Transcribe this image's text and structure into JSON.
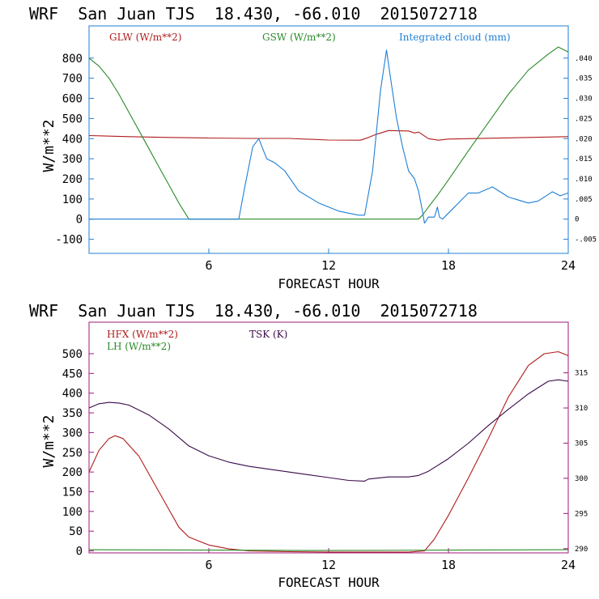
{
  "colors": {
    "glw": "#b01c1c",
    "gsw": "#2a8a2a",
    "cloud": "#1f7fd6",
    "hfx": "#b01c1c",
    "lh": "#2a8a2a",
    "tsk": "#3a0a4a",
    "frame_top": "#1f7fd6",
    "frame_bottom": "#a0187a",
    "text": "#000000"
  },
  "chart_data": [
    {
      "type": "line",
      "title": "WRF  San Juan TJS  18.430, -66.010  2015072718",
      "xlabel": "FORECAST HOUR",
      "ylabel": "W/m**2",
      "xlim": [
        0,
        24
      ],
      "ylim": [
        -170,
        960
      ],
      "y2lim": [
        -0.0085,
        0.048
      ],
      "x_ticks": [
        6,
        12,
        18,
        24
      ],
      "y_ticks": [
        -100,
        0,
        100,
        200,
        300,
        400,
        500,
        600,
        700,
        800
      ],
      "y2_ticks": [
        -0.005,
        0,
        0.005,
        0.01,
        0.015,
        0.02,
        0.025,
        0.03,
        0.035,
        0.04
      ],
      "y2_tick_labels": [
        "-.005",
        "0",
        ".005",
        ".010",
        ".015",
        ".020",
        ".025",
        ".030",
        ".035",
        ".040"
      ],
      "legend": [
        "GLW (W/m**2)",
        "GSW (W/m**2)",
        "Integrated cloud (mm)"
      ],
      "series": [
        {
          "name": "GLW (W/m**2)",
          "axis": "left",
          "color_key": "glw",
          "points": [
            [
              0,
              415
            ],
            [
              2,
              410
            ],
            [
              4,
              406
            ],
            [
              6,
              403
            ],
            [
              8,
              401
            ],
            [
              10,
              401
            ],
            [
              12,
              393
            ],
            [
              13.6,
              392
            ],
            [
              14,
              406
            ],
            [
              14.4,
              422
            ],
            [
              15,
              440
            ],
            [
              16,
              438
            ],
            [
              16.3,
              428
            ],
            [
              16.5,
              433
            ],
            [
              17,
              400
            ],
            [
              17.5,
              392
            ],
            [
              18,
              398
            ],
            [
              20,
              402
            ],
            [
              22,
              406
            ],
            [
              24,
              410
            ]
          ]
        },
        {
          "name": "GSW (W/m**2)",
          "axis": "left",
          "color_key": "gsw",
          "points": [
            [
              0,
              800
            ],
            [
              0.5,
              760
            ],
            [
              1,
              700
            ],
            [
              1.5,
              620
            ],
            [
              2,
              530
            ],
            [
              2.5,
              440
            ],
            [
              3,
              350
            ],
            [
              3.5,
              260
            ],
            [
              4,
              170
            ],
            [
              4.5,
              80
            ],
            [
              5,
              0
            ],
            [
              6,
              0
            ],
            [
              8,
              0
            ],
            [
              10,
              0
            ],
            [
              12,
              0
            ],
            [
              14,
              0
            ],
            [
              16,
              0
            ],
            [
              16.5,
              0
            ],
            [
              16.7,
              20
            ],
            [
              17,
              60
            ],
            [
              17.5,
              125
            ],
            [
              18,
              195
            ],
            [
              19,
              340
            ],
            [
              20,
              480
            ],
            [
              21,
              620
            ],
            [
              22,
              740
            ],
            [
              23,
              820
            ],
            [
              23.5,
              855
            ],
            [
              24,
              830
            ]
          ]
        },
        {
          "name": "Integrated cloud (mm)",
          "axis": "right",
          "color_key": "cloud",
          "points": [
            [
              0,
              0
            ],
            [
              7,
              0
            ],
            [
              7.5,
              0
            ],
            [
              7.8,
              0.008
            ],
            [
              8.2,
              0.018
            ],
            [
              8.5,
              0.02
            ],
            [
              8.9,
              0.015
            ],
            [
              9.3,
              0.014
            ],
            [
              9.8,
              0.012
            ],
            [
              10.5,
              0.007
            ],
            [
              11.5,
              0.004
            ],
            [
              12.5,
              0.002
            ],
            [
              13.5,
              0.001
            ],
            [
              13.8,
              0.001
            ],
            [
              14.2,
              0.012
            ],
            [
              14.6,
              0.032
            ],
            [
              14.9,
              0.042
            ],
            [
              15.1,
              0.035
            ],
            [
              15.4,
              0.025
            ],
            [
              15.7,
              0.018
            ],
            [
              16,
              0.012
            ],
            [
              16.3,
              0.01
            ],
            [
              16.5,
              0.007
            ],
            [
              16.7,
              0.002
            ],
            [
              16.8,
              -0.001
            ],
            [
              17.0,
              0.0005
            ],
            [
              17.3,
              0.0005
            ],
            [
              17.45,
              0.003
            ],
            [
              17.55,
              0.0005
            ],
            [
              17.7,
              0.0
            ],
            [
              18.3,
              0.003
            ],
            [
              19,
              0.0065
            ],
            [
              19.5,
              0.0065
            ],
            [
              20.2,
              0.008
            ],
            [
              21,
              0.0055
            ],
            [
              22,
              0.004
            ],
            [
              22.5,
              0.0045
            ],
            [
              23.2,
              0.0068
            ],
            [
              23.6,
              0.0058
            ],
            [
              24,
              0.0065
            ]
          ]
        }
      ]
    },
    {
      "type": "line",
      "title": "WRF  San Juan TJS  18.430, -66.010  2015072718",
      "xlabel": "FORECAST HOUR",
      "ylabel": "W/m**2",
      "xlim": [
        0,
        24
      ],
      "ylim": [
        -5,
        580
      ],
      "y2lim": [
        289.4,
        322.2
      ],
      "x_ticks": [
        6,
        12,
        18,
        24
      ],
      "y_ticks": [
        0,
        50,
        100,
        150,
        200,
        250,
        300,
        350,
        400,
        450,
        500
      ],
      "y2_ticks": [
        290,
        295,
        300,
        305,
        310,
        315
      ],
      "legend": [
        "HFX (W/m**2)",
        "LH (W/m**2)",
        "TSK (K)"
      ],
      "series": [
        {
          "name": "HFX (W/m**2)",
          "axis": "left",
          "color_key": "hfx",
          "points": [
            [
              0,
              200
            ],
            [
              0.5,
              255
            ],
            [
              1,
              285
            ],
            [
              1.3,
              292
            ],
            [
              1.7,
              285
            ],
            [
              2.5,
              240
            ],
            [
              3.5,
              150
            ],
            [
              4.5,
              60
            ],
            [
              5,
              35
            ],
            [
              6,
              15
            ],
            [
              7,
              5
            ],
            [
              8,
              0
            ],
            [
              10,
              -2
            ],
            [
              12,
              -3
            ],
            [
              14,
              -3
            ],
            [
              16,
              -3
            ],
            [
              16.8,
              0
            ],
            [
              17.3,
              30
            ],
            [
              18,
              90
            ],
            [
              19,
              185
            ],
            [
              20,
              285
            ],
            [
              21,
              390
            ],
            [
              22,
              470
            ],
            [
              22.8,
              500
            ],
            [
              23.5,
              505
            ],
            [
              24,
              495
            ]
          ]
        },
        {
          "name": "LH (W/m**2)",
          "axis": "left",
          "color_key": "lh",
          "points": [
            [
              0,
              3
            ],
            [
              6,
              2
            ],
            [
              12,
              1
            ],
            [
              18,
              2
            ],
            [
              24,
              3
            ]
          ]
        },
        {
          "name": "TSK (K)",
          "axis": "right",
          "color_key": "tsk",
          "points": [
            [
              0,
              310.0
            ],
            [
              0.5,
              310.6
            ],
            [
              1,
              310.8
            ],
            [
              1.5,
              310.7
            ],
            [
              2,
              310.4
            ],
            [
              3,
              309.0
            ],
            [
              4,
              307.0
            ],
            [
              5,
              304.6
            ],
            [
              6,
              303.2
            ],
            [
              7,
              302.3
            ],
            [
              8,
              301.7
            ],
            [
              9,
              301.3
            ],
            [
              10,
              300.9
            ],
            [
              11,
              300.5
            ],
            [
              12,
              300.1
            ],
            [
              13,
              299.7
            ],
            [
              13.8,
              299.6
            ],
            [
              14,
              299.9
            ],
            [
              15,
              300.2
            ],
            [
              16,
              300.2
            ],
            [
              16.5,
              300.4
            ],
            [
              17,
              301.0
            ],
            [
              18,
              302.8
            ],
            [
              19,
              305.0
            ],
            [
              20,
              307.5
            ],
            [
              21,
              309.8
            ],
            [
              22,
              312.0
            ],
            [
              23,
              313.8
            ],
            [
              23.5,
              314.0
            ],
            [
              24,
              313.8
            ]
          ]
        }
      ]
    }
  ]
}
